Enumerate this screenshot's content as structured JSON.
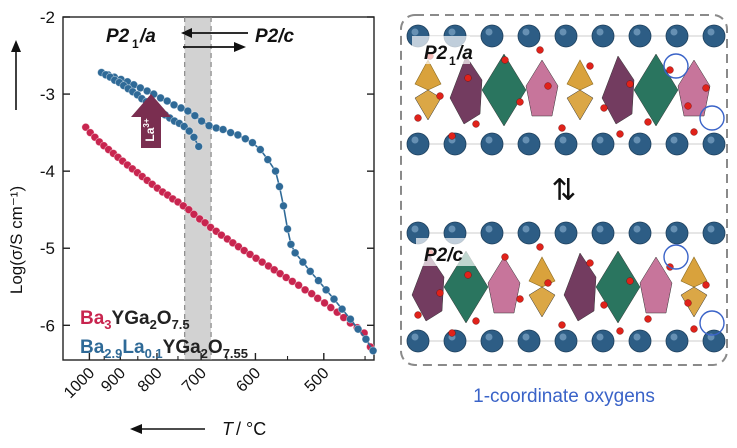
{
  "colors": {
    "series_pink": "#c8254f",
    "series_blue": "#2f6a97",
    "gray_band": "#d2d2d2",
    "la_arrow": "#7a2e50",
    "caption_blue": "#3a63c8",
    "axis": "#222222",
    "panel_border": "#8a8a8a"
  },
  "chart_data": {
    "type": "scatter",
    "ylabel": "Log(σ/S cm⁻¹)",
    "xlabel": "T / °C",
    "x_scale": "reciprocal temperature (1000/T, T in K)",
    "x_ticks": [
      "1000",
      "900",
      "800",
      "700",
      "600",
      "500"
    ],
    "y_ticks": [
      "-2",
      "-3",
      "-4",
      "-5",
      "-6"
    ],
    "ylim": [
      -6.45,
      -2.0
    ],
    "xlim_celsius": [
      1100,
      440
    ],
    "grid": false,
    "transition_band_celsius": [
      680,
      735
    ],
    "phase_labels": {
      "left": "P2",
      "left_sub": "1",
      "left_tail": "/a",
      "right": "P2/c"
    },
    "dopant_label": "La",
    "dopant_sup": "3+",
    "series": [
      {
        "name_parts": [
          [
            "Ba",
            false
          ],
          [
            "3",
            true
          ],
          [
            "YGa",
            false
          ],
          [
            "2",
            true
          ],
          [
            "O",
            false
          ],
          [
            "7.5",
            true
          ]
        ],
        "color": "#c8254f",
        "x": [
          1013,
          997,
          981,
          966,
          951,
          936,
          921,
          907,
          893,
          879,
          865,
          851,
          838,
          825,
          812,
          799,
          786,
          774,
          762,
          750,
          738,
          726,
          715,
          703,
          692,
          681,
          670,
          660,
          649,
          639,
          629,
          619,
          609,
          599,
          589,
          579,
          570,
          561,
          552,
          543,
          534,
          525,
          516,
          508,
          499,
          491,
          483,
          475,
          467,
          459,
          451,
          444
        ],
        "y": [
          -3.43,
          -3.5,
          -3.56,
          -3.62,
          -3.67,
          -3.72,
          -3.77,
          -3.82,
          -3.87,
          -3.92,
          -3.97,
          -4.02,
          -4.07,
          -4.12,
          -4.17,
          -4.22,
          -4.27,
          -4.31,
          -4.36,
          -4.4,
          -4.45,
          -4.5,
          -4.56,
          -4.62,
          -4.67,
          -4.73,
          -4.78,
          -4.83,
          -4.88,
          -4.93,
          -4.98,
          -5.03,
          -5.08,
          -5.13,
          -5.18,
          -5.23,
          -5.28,
          -5.33,
          -5.38,
          -5.43,
          -5.48,
          -5.54,
          -5.59,
          -5.65,
          -5.71,
          -5.77,
          -5.83,
          -5.9,
          -5.97,
          -6.03,
          -6.1,
          -6.28
        ]
      },
      {
        "name_parts": [
          [
            "Ba",
            false
          ],
          [
            "2.9",
            true
          ],
          [
            "La",
            false
          ],
          [
            "0.1",
            true
          ],
          [
            "YGa",
            false
          ],
          [
            "2",
            true
          ],
          [
            "O",
            false
          ],
          [
            "7.55",
            true
          ]
        ],
        "color": "#2f6a97",
        "heating": {
          "x": [
            959,
            938,
            918,
            898,
            879,
            861,
            843,
            825,
            808,
            791,
            775,
            759,
            743,
            728,
            713,
            699,
            684,
            670,
            657,
            643,
            630,
            617,
            605,
            592,
            580,
            568,
            562,
            556,
            550,
            545,
            539,
            528,
            518,
            507,
            497,
            487,
            477,
            467,
            458,
            449,
            441
          ],
          "y": [
            -2.72,
            -2.75,
            -2.78,
            -2.81,
            -2.84,
            -2.88,
            -2.92,
            -2.96,
            -3.0,
            -3.05,
            -3.09,
            -3.14,
            -3.18,
            -3.22,
            -3.28,
            -3.35,
            -3.41,
            -3.44,
            -3.46,
            -3.5,
            -3.53,
            -3.58,
            -3.63,
            -3.72,
            -3.85,
            -4.0,
            -4.2,
            -4.45,
            -4.75,
            -4.95,
            -5.06,
            -5.18,
            -5.3,
            -5.42,
            -5.54,
            -5.66,
            -5.79,
            -5.92,
            -6.05,
            -6.18,
            -6.33
          ]
        },
        "cooling": {
          "x": [
            959,
            945,
            931,
            917,
            903,
            890,
            877,
            864,
            851,
            839,
            827,
            815,
            803,
            791,
            780,
            769,
            758,
            747,
            736,
            725,
            715,
            705
          ],
          "y": [
            -2.72,
            -2.75,
            -2.78,
            -2.82,
            -2.85,
            -2.89,
            -2.93,
            -2.97,
            -3.01,
            -3.06,
            -3.1,
            -3.14,
            -3.18,
            -3.22,
            -3.27,
            -3.31,
            -3.35,
            -3.38,
            -3.42,
            -3.48,
            -3.56,
            -3.68
          ]
        }
      }
    ]
  },
  "structure_panel": {
    "label_top": "P2",
    "label_top_sub": "1",
    "label_top_tail": "/a",
    "label_bottom": "P2/c",
    "exchange_symbol": "⇅",
    "caption": "1-coordinate oxygens",
    "polyhedra_colors": {
      "green": "#1f6e56",
      "purple": "#6b3157",
      "pink": "#c46e96",
      "gold": "#d9a23c",
      "ion": "#2d5d85",
      "oxygen": "#e0221a"
    }
  }
}
